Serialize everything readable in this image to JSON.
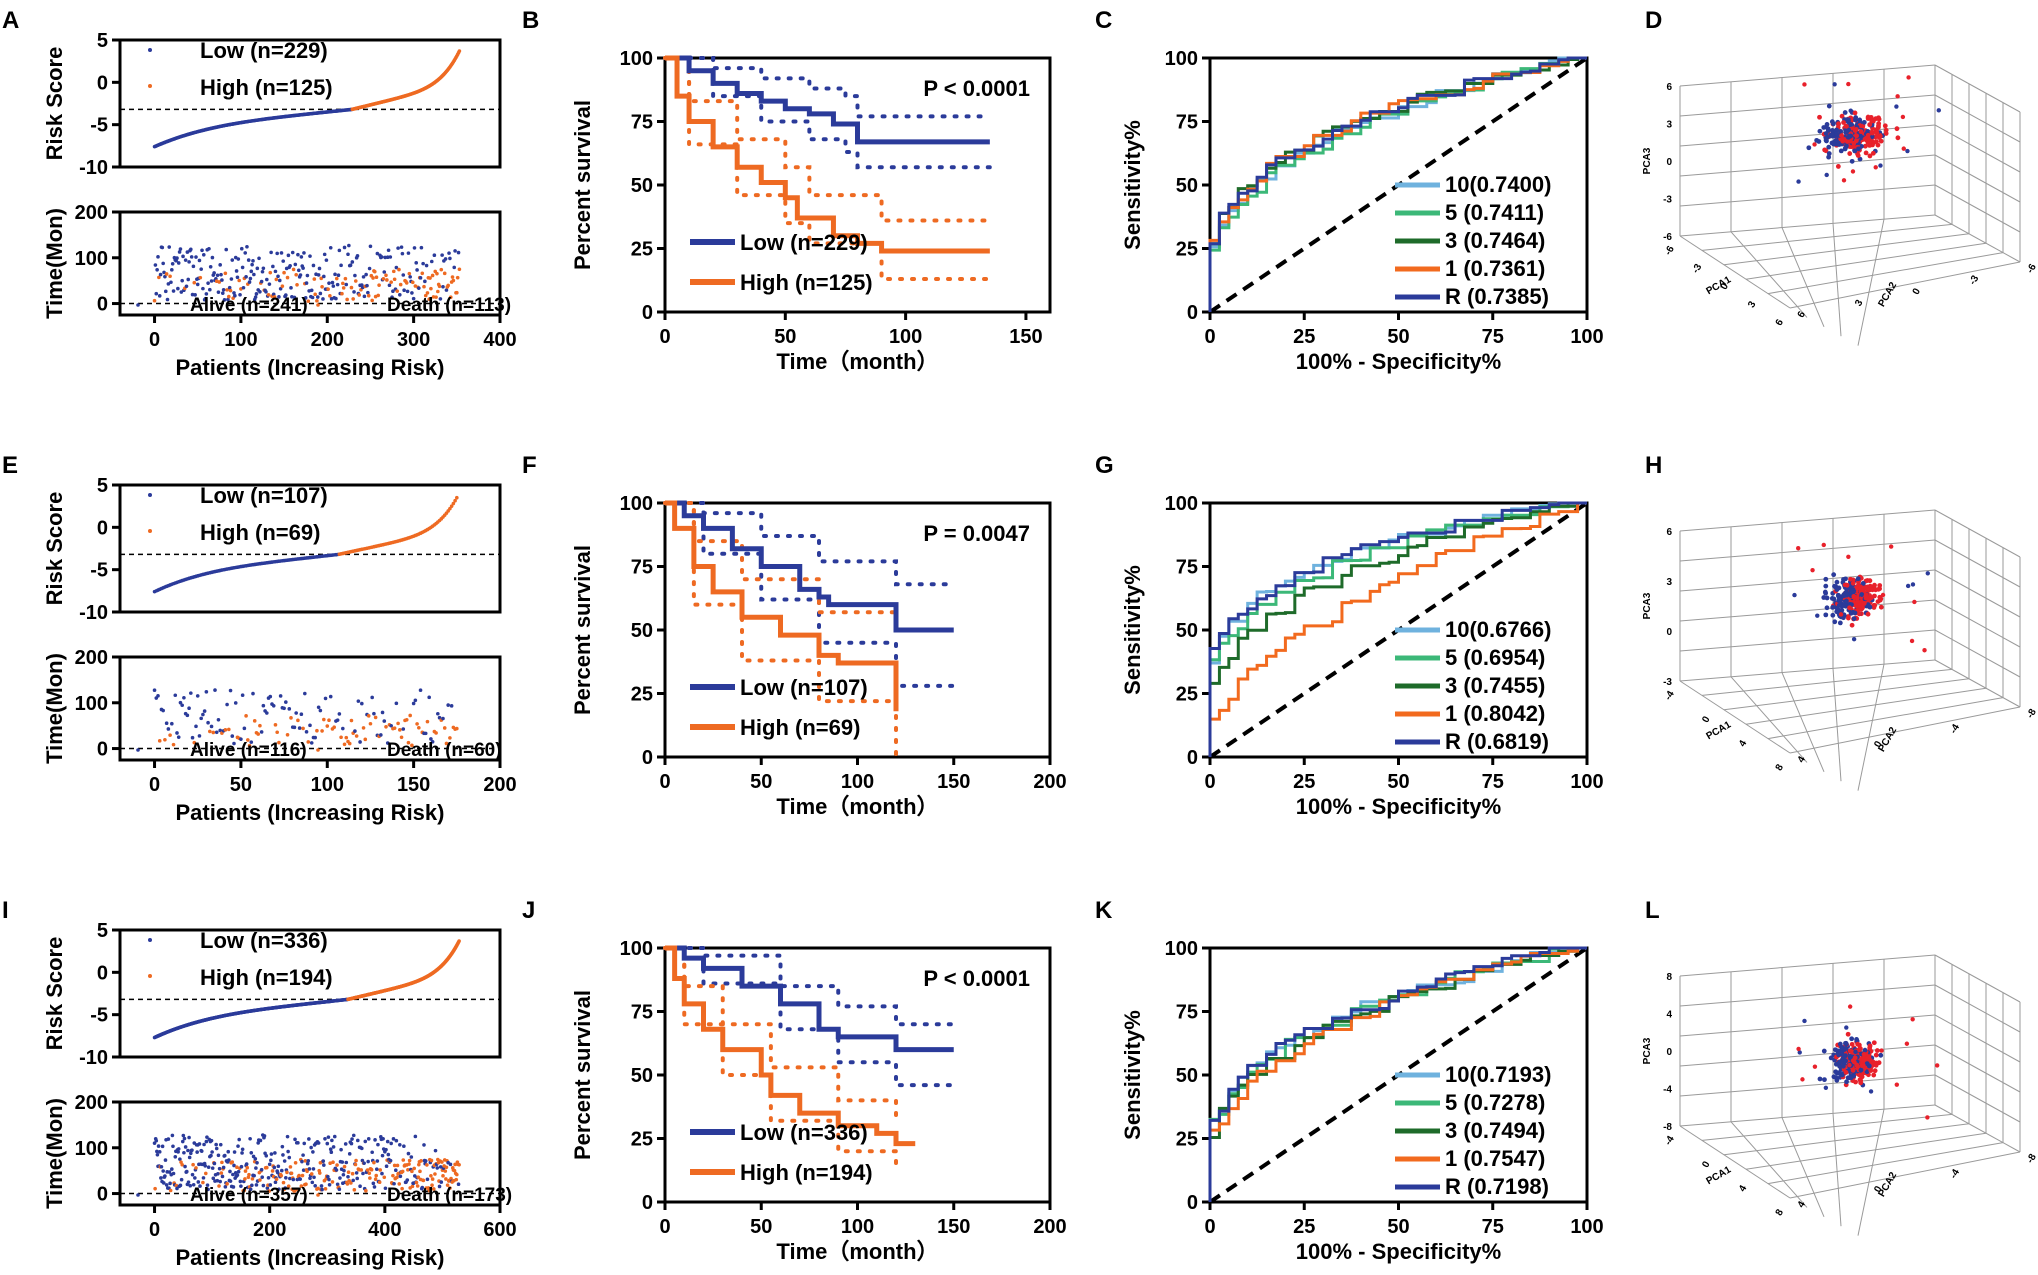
{
  "colors": {
    "low": "#2b3b9a",
    "high": "#ee6a22",
    "roc10": "#6fb2de",
    "roc5": "#3cb878",
    "roc3": "#1e6b2a",
    "roc1": "#f26a1e",
    "rocR": "#2b3b9a",
    "pca_red": "#e8212b",
    "pca_blue": "#2b3b9a"
  },
  "rows": [
    {
      "labels": {
        "risk": "A",
        "km": "B",
        "roc": "C",
        "pca": "D"
      },
      "risk": {
        "ylabel": "Risk Score",
        "yticks": [
          "5",
          "0",
          "-5",
          "-10"
        ],
        "ymin": -10,
        "ymax": 5,
        "cutoff": -3.2,
        "legend_low": "Low (n=229)",
        "legend_high": "High (n=125)",
        "n_low": 229,
        "n_high": 125,
        "score_min": -7.6,
        "score_max": 3.7
      },
      "surv": {
        "ylabel": "Time(Mon)",
        "yticks": [
          "200",
          "100",
          "0"
        ],
        "xticks": [
          "0",
          "100",
          "200",
          "300",
          "400"
        ],
        "xmax": 400,
        "xlabel": "Patients (Increasing Risk)",
        "alive": "Alive (n=241)",
        "death": "Death (n=113)"
      },
      "km": {
        "ylabel": "Percent survival",
        "xlabel": "Time（month）",
        "xticks": [
          "0",
          "50",
          "100",
          "150"
        ],
        "xmax": 150,
        "yticks": [
          "100",
          "75",
          "50",
          "25",
          "0"
        ],
        "pvalue": "P < 0.0001",
        "legend_low": "Low (n=229)",
        "legend_high": "High (n=125)",
        "low": [
          [
            0,
            100
          ],
          [
            10,
            95
          ],
          [
            20,
            90
          ],
          [
            30,
            86
          ],
          [
            40,
            83
          ],
          [
            50,
            80
          ],
          [
            60,
            78
          ],
          [
            70,
            74
          ],
          [
            75,
            74
          ],
          [
            80,
            67
          ],
          [
            135,
            67
          ]
        ],
        "low_ci_up": [
          [
            0,
            100
          ],
          [
            20,
            96
          ],
          [
            40,
            92
          ],
          [
            60,
            88
          ],
          [
            75,
            85
          ],
          [
            80,
            77
          ],
          [
            135,
            77
          ]
        ],
        "low_ci_dn": [
          [
            0,
            100
          ],
          [
            20,
            85
          ],
          [
            40,
            75
          ],
          [
            60,
            68
          ],
          [
            75,
            63
          ],
          [
            80,
            57
          ],
          [
            135,
            57
          ]
        ],
        "high": [
          [
            0,
            100
          ],
          [
            5,
            85
          ],
          [
            10,
            75
          ],
          [
            20,
            65
          ],
          [
            30,
            57
          ],
          [
            40,
            51
          ],
          [
            50,
            45
          ],
          [
            55,
            37
          ],
          [
            70,
            30
          ],
          [
            80,
            27
          ],
          [
            90,
            24
          ],
          [
            135,
            24
          ]
        ],
        "high_ci_up": [
          [
            0,
            100
          ],
          [
            10,
            83
          ],
          [
            30,
            68
          ],
          [
            50,
            57
          ],
          [
            60,
            46
          ],
          [
            90,
            36
          ],
          [
            135,
            36
          ]
        ],
        "high_ci_dn": [
          [
            0,
            100
          ],
          [
            10,
            66
          ],
          [
            30,
            46
          ],
          [
            50,
            35
          ],
          [
            60,
            27
          ],
          [
            90,
            13
          ],
          [
            135,
            13
          ]
        ]
      },
      "roc": {
        "ylabel": "Sensitivity%",
        "xlabel": "100% - Specificity%",
        "ticks": [
          "0",
          "25",
          "50",
          "75",
          "100"
        ],
        "legend": [
          "10(0.7400)",
          "5  (0.7411)",
          "3  (0.7464)",
          "1  (0.7361)",
          "R  (0.7385)"
        ],
        "shape": [
          0.35,
          0.37,
          0.34,
          0.33,
          0.34
        ]
      },
      "pca": {
        "x": "PCA1",
        "y": "PCA2",
        "z": "PCA3",
        "zticks": [
          "6",
          "3",
          "0",
          "-3",
          "-6"
        ],
        "xticks": [
          "-6",
          "-3",
          "0",
          "3",
          "6"
        ],
        "yticks": [
          "6",
          "3",
          "0",
          "-3",
          "-6"
        ]
      }
    },
    {
      "labels": {
        "risk": "E",
        "km": "F",
        "roc": "G",
        "pca": "H"
      },
      "risk": {
        "ylabel": "Risk Score",
        "yticks": [
          "5",
          "0",
          "-5",
          "-10"
        ],
        "ymin": -10,
        "ymax": 5,
        "cutoff": -3.2,
        "legend_low": "Low (n=107)",
        "legend_high": "High (n=69)",
        "n_low": 107,
        "n_high": 69,
        "score_min": -7.6,
        "score_max": 3.5
      },
      "surv": {
        "ylabel": "Time(Mon)",
        "yticks": [
          "200",
          "100",
          "0"
        ],
        "xticks": [
          "0",
          "50",
          "100",
          "150",
          "200"
        ],
        "xmax": 200,
        "xlabel": "Patients (Increasing Risk)",
        "alive": "Alive (n=116)",
        "death": "Death (n=60)"
      },
      "km": {
        "ylabel": "Percent survival",
        "xlabel": "Time（month）",
        "xticks": [
          "0",
          "50",
          "100",
          "150",
          "200"
        ],
        "xmax": 200,
        "yticks": [
          "100",
          "75",
          "50",
          "25",
          "0"
        ],
        "pvalue": "P = 0.0047",
        "legend_low": "Low (n=107)",
        "legend_high": "High (n=69)",
        "low": [
          [
            0,
            100
          ],
          [
            10,
            95
          ],
          [
            20,
            90
          ],
          [
            35,
            82
          ],
          [
            50,
            75
          ],
          [
            70,
            66
          ],
          [
            80,
            63
          ],
          [
            85,
            60
          ],
          [
            120,
            60
          ],
          [
            120,
            50
          ],
          [
            150,
            50
          ]
        ],
        "low_ci_up": [
          [
            0,
            100
          ],
          [
            20,
            96
          ],
          [
            50,
            87
          ],
          [
            80,
            77
          ],
          [
            120,
            68
          ],
          [
            150,
            68
          ]
        ],
        "low_ci_dn": [
          [
            0,
            100
          ],
          [
            20,
            80
          ],
          [
            50,
            62
          ],
          [
            80,
            45
          ],
          [
            120,
            28
          ],
          [
            150,
            28
          ]
        ],
        "high": [
          [
            0,
            100
          ],
          [
            5,
            90
          ],
          [
            15,
            75
          ],
          [
            25,
            65
          ],
          [
            40,
            55
          ],
          [
            60,
            48
          ],
          [
            80,
            40
          ],
          [
            90,
            37
          ],
          [
            120,
            37
          ],
          [
            120,
            18
          ]
        ],
        "high_ci_up": [
          [
            0,
            100
          ],
          [
            15,
            85
          ],
          [
            40,
            70
          ],
          [
            80,
            57
          ],
          [
            120,
            50
          ]
        ],
        "high_ci_dn": [
          [
            0,
            100
          ],
          [
            15,
            60
          ],
          [
            40,
            38
          ],
          [
            80,
            22
          ],
          [
            120,
            0
          ]
        ]
      },
      "roc": {
        "ylabel": "Sensitivity%",
        "xlabel": "100% - Specificity%",
        "ticks": [
          "0",
          "25",
          "50",
          "75",
          "100"
        ],
        "legend": [
          "10(0.6766)",
          "5  (0.6954)",
          "3  (0.7455)",
          "1  (0.8042)",
          "R  (0.6819)"
        ],
        "shape": [
          0.25,
          0.28,
          0.35,
          0.55,
          0.25
        ]
      },
      "pca": {
        "x": "PCA1",
        "y": "PCA2",
        "z": "PCA3",
        "zticks": [
          "6",
          "3",
          "0",
          "-3"
        ],
        "xticks": [
          "-4",
          "0",
          "4",
          "8"
        ],
        "yticks": [
          "4",
          "0",
          "-4",
          "-8"
        ]
      }
    },
    {
      "labels": {
        "risk": "I",
        "km": "J",
        "roc": "K",
        "pca": "L"
      },
      "risk": {
        "ylabel": "Risk Score",
        "yticks": [
          "5",
          "0",
          "-5",
          "-10"
        ],
        "ymin": -10,
        "ymax": 5,
        "cutoff": -3.2,
        "legend_low": "Low (n=336)",
        "legend_high": "High (n=194)",
        "n_low": 336,
        "n_high": 194,
        "score_min": -7.7,
        "score_max": 3.7
      },
      "surv": {
        "ylabel": "Time(Mon)",
        "yticks": [
          "200",
          "100",
          "0"
        ],
        "xticks": [
          "0",
          "200",
          "400",
          "600"
        ],
        "xmax": 600,
        "xlabel": "Patients (Increasing Risk)",
        "alive": "Alive (n=357)",
        "death": "Death (n=173)"
      },
      "km": {
        "ylabel": "Percent survival",
        "xlabel": "Time（month）",
        "xticks": [
          "0",
          "50",
          "100",
          "150",
          "200"
        ],
        "xmax": 200,
        "yticks": [
          "100",
          "75",
          "50",
          "25",
          "0"
        ],
        "pvalue": "P < 0.0001",
        "legend_low": "Low (n=336)",
        "legend_high": "High (n=194)",
        "low": [
          [
            0,
            100
          ],
          [
            10,
            96
          ],
          [
            20,
            92
          ],
          [
            40,
            85
          ],
          [
            60,
            78
          ],
          [
            80,
            68
          ],
          [
            90,
            65
          ],
          [
            120,
            65
          ],
          [
            120,
            60
          ],
          [
            150,
            60
          ]
        ],
        "low_ci_up": [
          [
            0,
            100
          ],
          [
            20,
            97
          ],
          [
            60,
            85
          ],
          [
            90,
            77
          ],
          [
            120,
            70
          ],
          [
            150,
            70
          ]
        ],
        "low_ci_dn": [
          [
            0,
            100
          ],
          [
            20,
            86
          ],
          [
            60,
            68
          ],
          [
            90,
            55
          ],
          [
            120,
            46
          ],
          [
            150,
            46
          ]
        ],
        "high": [
          [
            0,
            100
          ],
          [
            5,
            88
          ],
          [
            10,
            78
          ],
          [
            20,
            68
          ],
          [
            30,
            60
          ],
          [
            50,
            50
          ],
          [
            55,
            42
          ],
          [
            70,
            35
          ],
          [
            90,
            30
          ],
          [
            110,
            27
          ],
          [
            120,
            25
          ],
          [
            120,
            23
          ],
          [
            130,
            23
          ]
        ],
        "high_ci_up": [
          [
            0,
            100
          ],
          [
            10,
            85
          ],
          [
            30,
            70
          ],
          [
            55,
            53
          ],
          [
            90,
            40
          ],
          [
            120,
            32
          ]
        ],
        "high_ci_dn": [
          [
            0,
            100
          ],
          [
            10,
            70
          ],
          [
            30,
            50
          ],
          [
            55,
            32
          ],
          [
            90,
            20
          ],
          [
            120,
            12
          ]
        ]
      },
      "roc": {
        "ylabel": "Sensitivity%",
        "xlabel": "100% - Specificity%",
        "ticks": [
          "0",
          "25",
          "50",
          "75",
          "100"
        ],
        "legend": [
          "10(0.7193)",
          "5  (0.7278)",
          "3  (0.7494)",
          "1  (0.7547)",
          "R  (0.7198)"
        ],
        "shape": [
          0.32,
          0.33,
          0.35,
          0.37,
          0.32
        ]
      },
      "pca": {
        "x": "PCA1",
        "y": "PCA2",
        "z": "PCA3",
        "zticks": [
          "8",
          "4",
          "0",
          "-4",
          "-8"
        ],
        "xticks": [
          "-4",
          "0",
          "4",
          "8"
        ],
        "yticks": [
          "4",
          "0",
          "-4",
          "-8"
        ]
      }
    }
  ]
}
